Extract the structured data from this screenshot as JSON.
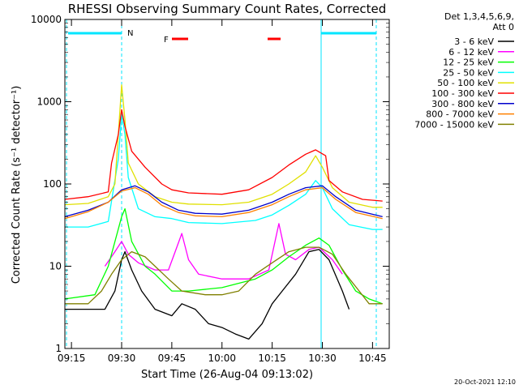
{
  "chart_data": {
    "type": "line",
    "title": "RHESSI Observing Summary Count Rates, Corrected",
    "xlabel": "Start Time (26-Aug-04 09:13:02)",
    "ylabel": "Corrected Count Rate (s⁻¹ detector⁻¹)",
    "yscale": "log",
    "xlim": [
      "09:13:02",
      "10:50:00"
    ],
    "ylim": [
      1,
      10000
    ],
    "x_ticks": [
      "09:15",
      "09:30",
      "09:45",
      "10:00",
      "10:15",
      "10:30",
      "10:45"
    ],
    "y_ticks": [
      "1",
      "10",
      "100",
      "1000",
      "10000"
    ],
    "grid": false,
    "legend_position": "top-right",
    "legend_header": [
      "Det 1,3,4,5,6,9,",
      "Att 0"
    ],
    "annotations": {
      "footer_date": "20-Oct-2021 12:10",
      "flag_n": "N",
      "flag_f": "F"
    },
    "series": [
      {
        "name": "3 - 6 keV",
        "color": "#000000",
        "points": [
          [
            "09:13",
            3.0
          ],
          [
            "09:20",
            3.0
          ],
          [
            "09:25",
            3.0
          ],
          [
            "09:28",
            5.0
          ],
          [
            "09:30",
            12.0
          ],
          [
            "09:31",
            15.0
          ],
          [
            "09:33",
            9.0
          ],
          [
            "09:36",
            5.0
          ],
          [
            "09:40",
            3.0
          ],
          [
            "09:45",
            2.5
          ],
          [
            "09:48",
            3.5
          ],
          [
            "09:52",
            3.0
          ],
          [
            "09:56",
            2.0
          ],
          [
            "10:00",
            1.8
          ],
          [
            "10:04",
            1.5
          ],
          [
            "10:08",
            1.3
          ],
          [
            "10:12",
            2.0
          ],
          [
            "10:15",
            3.5
          ],
          [
            "10:18",
            5.0
          ],
          [
            "10:22",
            8.0
          ],
          [
            "10:26",
            15.0
          ],
          [
            "10:29",
            16.0
          ],
          [
            "10:32",
            12.0
          ],
          [
            "10:36",
            5.0
          ],
          [
            "10:38",
            3.0
          ]
        ]
      },
      {
        "name": "6 - 12 keV",
        "color": "#ff00ff",
        "points": [
          [
            "09:25",
            10.0
          ],
          [
            "09:28",
            15.0
          ],
          [
            "09:30",
            20.0
          ],
          [
            "09:32",
            14.0
          ],
          [
            "09:35",
            11.0
          ],
          [
            "09:40",
            9.0
          ],
          [
            "09:44",
            9.0
          ],
          [
            "09:46",
            15.0
          ],
          [
            "09:48",
            25.0
          ],
          [
            "09:50",
            12.0
          ],
          [
            "09:53",
            8.0
          ],
          [
            "10:00",
            7.0
          ],
          [
            "10:08",
            7.0
          ],
          [
            "10:14",
            9.0
          ],
          [
            "10:17",
            33.0
          ],
          [
            "10:19",
            14.0
          ],
          [
            "10:22",
            12.0
          ],
          [
            "10:26",
            16.0
          ],
          [
            "10:29",
            17.0
          ],
          [
            "10:33",
            12.0
          ],
          [
            "10:36",
            8.0
          ]
        ]
      },
      {
        "name": "12 - 25 keV",
        "color": "#00ff00",
        "points": [
          [
            "09:13",
            4.0
          ],
          [
            "09:22",
            4.5
          ],
          [
            "09:26",
            10.0
          ],
          [
            "09:30",
            40.0
          ],
          [
            "09:31",
            50.0
          ],
          [
            "09:33",
            20.0
          ],
          [
            "09:37",
            10.0
          ],
          [
            "09:40",
            8.0
          ],
          [
            "09:45",
            5.0
          ],
          [
            "09:50",
            5.0
          ],
          [
            "10:00",
            5.5
          ],
          [
            "10:10",
            7.0
          ],
          [
            "10:15",
            9.0
          ],
          [
            "10:20",
            13.0
          ],
          [
            "10:25",
            18.0
          ],
          [
            "10:29",
            22.0
          ],
          [
            "10:32",
            18.0
          ],
          [
            "10:36",
            9.0
          ],
          [
            "10:40",
            5.0
          ],
          [
            "10:44",
            4.0
          ],
          [
            "10:48",
            3.5
          ]
        ]
      },
      {
        "name": "25 - 50 keV",
        "color": "#00ffff",
        "points": [
          [
            "09:13",
            30.0
          ],
          [
            "09:20",
            30.0
          ],
          [
            "09:26",
            35.0
          ],
          [
            "09:29",
            200.0
          ],
          [
            "09:30",
            700.0
          ],
          [
            "09:31",
            400.0
          ],
          [
            "09:32",
            120.0
          ],
          [
            "09:35",
            50.0
          ],
          [
            "09:40",
            40.0
          ],
          [
            "09:45",
            38.0
          ],
          [
            "09:50",
            34.0
          ],
          [
            "10:00",
            33.0
          ],
          [
            "10:10",
            36.0
          ],
          [
            "10:15",
            42.0
          ],
          [
            "10:20",
            55.0
          ],
          [
            "10:25",
            75.0
          ],
          [
            "10:28",
            110.0
          ],
          [
            "10:30",
            90.0
          ],
          [
            "10:33",
            50.0
          ],
          [
            "10:38",
            32.0
          ],
          [
            "10:45",
            28.0
          ],
          [
            "10:48",
            28.0
          ]
        ]
      },
      {
        "name": "50 - 100 keV",
        "color": "#e0e000",
        "points": [
          [
            "09:13",
            56.0
          ],
          [
            "09:20",
            58.0
          ],
          [
            "09:26",
            70.0
          ],
          [
            "09:28",
            100.0
          ],
          [
            "09:29",
            400.0
          ],
          [
            "09:30",
            1600.0
          ],
          [
            "09:31",
            600.0
          ],
          [
            "09:32",
            180.0
          ],
          [
            "09:35",
            100.0
          ],
          [
            "09:40",
            70.0
          ],
          [
            "09:45",
            60.0
          ],
          [
            "09:50",
            57.0
          ],
          [
            "10:00",
            56.0
          ],
          [
            "10:08",
            60.0
          ],
          [
            "10:15",
            75.0
          ],
          [
            "10:20",
            100.0
          ],
          [
            "10:25",
            140.0
          ],
          [
            "10:28",
            220.0
          ],
          [
            "10:30",
            160.0
          ],
          [
            "10:33",
            90.0
          ],
          [
            "10:38",
            60.0
          ],
          [
            "10:45",
            52.0
          ],
          [
            "10:48",
            52.0
          ]
        ]
      },
      {
        "name": "100 - 300 keV",
        "color": "#ff0000",
        "points": [
          [
            "09:13",
            65.0
          ],
          [
            "09:20",
            70.0
          ],
          [
            "09:26",
            80.0
          ],
          [
            "09:27",
            180.0
          ],
          [
            "09:29",
            400.0
          ],
          [
            "09:30",
            800.0
          ],
          [
            "09:31",
            500.0
          ],
          [
            "09:33",
            250.0
          ],
          [
            "09:37",
            160.0
          ],
          [
            "09:42",
            100.0
          ],
          [
            "09:45",
            85.0
          ],
          [
            "09:50",
            78.0
          ],
          [
            "10:00",
            75.0
          ],
          [
            "10:08",
            85.0
          ],
          [
            "10:15",
            120.0
          ],
          [
            "10:20",
            170.0
          ],
          [
            "10:25",
            230.0
          ],
          [
            "10:28",
            260.0
          ],
          [
            "10:31",
            220.0
          ],
          [
            "10:32",
            110.0
          ],
          [
            "10:36",
            80.0
          ],
          [
            "10:42",
            65.0
          ],
          [
            "10:48",
            62.0
          ]
        ]
      },
      {
        "name": "300 - 800 keV",
        "color": "#0000cc",
        "points": [
          [
            "09:13",
            40.0
          ],
          [
            "09:20",
            48.0
          ],
          [
            "09:26",
            60.0
          ],
          [
            "09:30",
            85.0
          ],
          [
            "09:34",
            95.0
          ],
          [
            "09:38",
            80.0
          ],
          [
            "09:42",
            60.0
          ],
          [
            "09:47",
            48.0
          ],
          [
            "09:52",
            44.0
          ],
          [
            "10:00",
            43.0
          ],
          [
            "10:08",
            48.0
          ],
          [
            "10:15",
            60.0
          ],
          [
            "10:20",
            75.0
          ],
          [
            "10:25",
            90.0
          ],
          [
            "10:30",
            95.0
          ],
          [
            "10:34",
            70.0
          ],
          [
            "10:40",
            48.0
          ],
          [
            "10:48",
            40.0
          ]
        ]
      },
      {
        "name": "800 - 7000 keV",
        "color": "#ff8000",
        "points": [
          [
            "09:13",
            38.0
          ],
          [
            "09:20",
            46.0
          ],
          [
            "09:26",
            60.0
          ],
          [
            "09:30",
            82.0
          ],
          [
            "09:34",
            90.0
          ],
          [
            "09:38",
            75.0
          ],
          [
            "09:42",
            55.0
          ],
          [
            "09:47",
            45.0
          ],
          [
            "09:52",
            41.0
          ],
          [
            "10:00",
            40.0
          ],
          [
            "10:08",
            45.0
          ],
          [
            "10:15",
            56.0
          ],
          [
            "10:20",
            70.0
          ],
          [
            "10:25",
            85.0
          ],
          [
            "10:30",
            90.0
          ],
          [
            "10:34",
            65.0
          ],
          [
            "10:40",
            45.0
          ],
          [
            "10:48",
            38.0
          ]
        ]
      },
      {
        "name": "7000 - 15000 keV",
        "color": "#808000",
        "points": [
          [
            "09:13",
            3.5
          ],
          [
            "09:20",
            3.5
          ],
          [
            "09:24",
            5.0
          ],
          [
            "09:27",
            8.0
          ],
          [
            "09:30",
            12.0
          ],
          [
            "09:33",
            15.0
          ],
          [
            "09:37",
            13.0
          ],
          [
            "09:40",
            10.0
          ],
          [
            "09:44",
            7.0
          ],
          [
            "09:48",
            5.0
          ],
          [
            "09:55",
            4.5
          ],
          [
            "10:00",
            4.5
          ],
          [
            "10:05",
            5.0
          ],
          [
            "10:10",
            8.0
          ],
          [
            "10:15",
            11.0
          ],
          [
            "10:20",
            15.0
          ],
          [
            "10:25",
            17.0
          ],
          [
            "10:29",
            17.0
          ],
          [
            "10:33",
            14.0
          ],
          [
            "10:37",
            8.0
          ],
          [
            "10:41",
            5.0
          ],
          [
            "10:44",
            3.5
          ],
          [
            "10:48",
            3.5
          ]
        ]
      }
    ]
  }
}
